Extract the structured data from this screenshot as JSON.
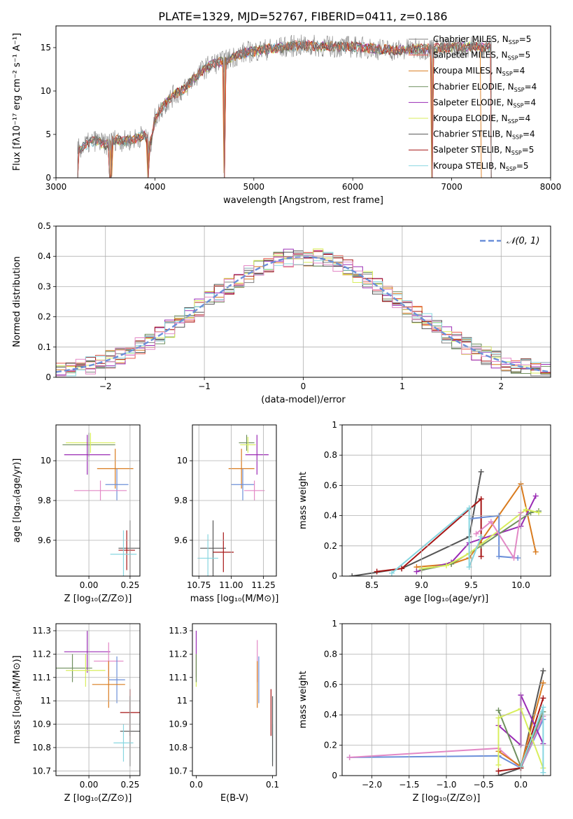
{
  "figure": {
    "title": "PLATE=1329, MJD=52767, FIBERID=0411, z=0.186"
  },
  "colors": {
    "chabrier_miles": "#808080",
    "salpeter_miles": "#e8584a",
    "kroupa_miles": "#d97b1e",
    "chabrier_elodie": "#6f8f5e",
    "salpeter_elodie": "#9a2bb5",
    "kroupa_elodie": "#d8ee5c",
    "chabrier_stelib": "#555555",
    "salpeter_stelib": "#a61515",
    "kroupa_stelib": "#87d6e0",
    "extra_blue": "#6b8fd9",
    "extra_pink": "#e388c6"
  },
  "chart_data": [
    {
      "type": "line",
      "id": "spectrum",
      "xlabel": "wavelength [Angstrom, rest frame]",
      "ylabel": "Flux [fλ10⁻¹⁷ erg cm⁻² s⁻¹ A⁻¹]",
      "xlim": [
        3000,
        8000
      ],
      "ylim": [
        0,
        17.5
      ],
      "xticks": [
        3000,
        4000,
        5000,
        6000,
        7000,
        8000
      ],
      "yticks": [
        0,
        5,
        10,
        15
      ],
      "grid": false,
      "legend_position": "top-right",
      "legend": [
        {
          "label": "Chabrier MILES, N",
          "sub": "SSP",
          "suffix": "=5",
          "color": "#808080"
        },
        {
          "label": "Salpeter MILES, N",
          "sub": "SSP",
          "suffix": "=5",
          "color": "#e8584a"
        },
        {
          "label": "Kroupa MILES, N",
          "sub": "SSP",
          "suffix": "=4",
          "color": "#d97b1e"
        },
        {
          "label": "Chabrier ELODIE, N",
          "sub": "SSP",
          "suffix": "=4",
          "color": "#6f8f5e"
        },
        {
          "label": "Salpeter ELODIE, N",
          "sub": "SSP",
          "suffix": "=4",
          "color": "#9a2bb5"
        },
        {
          "label": "Kroupa ELODIE, N",
          "sub": "SSP",
          "suffix": "=4",
          "color": "#d8ee5c"
        },
        {
          "label": "Chabrier STELIB, N",
          "sub": "SSP",
          "suffix": "=4",
          "color": "#555555"
        },
        {
          "label": "Salpeter STELIB, N",
          "sub": "SSP",
          "suffix": "=5",
          "color": "#a61515"
        },
        {
          "label": "Kroupa STELIB, N",
          "sub": "SSP",
          "suffix": "=5",
          "color": "#87d6e0"
        }
      ],
      "envelope": [
        [
          3220,
          3.2
        ],
        [
          3300,
          3.8
        ],
        [
          3400,
          4.3
        ],
        [
          3500,
          3.8
        ],
        [
          3600,
          4.4
        ],
        [
          3700,
          4.2
        ],
        [
          3800,
          4.5
        ],
        [
          3900,
          5.0
        ],
        [
          3950,
          3.5
        ],
        [
          4000,
          6.8
        ],
        [
          4100,
          8.5
        ],
        [
          4200,
          9.6
        ],
        [
          4300,
          10.2
        ],
        [
          4400,
          11.5
        ],
        [
          4500,
          12.6
        ],
        [
          4600,
          13.2
        ],
        [
          4700,
          13.4
        ],
        [
          4800,
          14.0
        ],
        [
          4900,
          14.4
        ],
        [
          5000,
          14.6
        ],
        [
          5200,
          14.9
        ],
        [
          5400,
          15.2
        ],
        [
          5600,
          15.2
        ],
        [
          5800,
          15.1
        ],
        [
          6000,
          15.1
        ],
        [
          6200,
          14.9
        ],
        [
          6400,
          14.7
        ],
        [
          6600,
          14.8
        ],
        [
          6800,
          14.9
        ],
        [
          7000,
          15.0
        ],
        [
          7200,
          15.1
        ],
        [
          7400,
          15.0
        ]
      ],
      "drops": [
        3220,
        3540,
        3560,
        3930,
        4700,
        6800,
        7400
      ]
    },
    {
      "type": "step",
      "id": "residuals",
      "xlabel": "(data-model)/error",
      "ylabel": "Normed distribution",
      "xlim": [
        -2.5,
        2.5
      ],
      "ylim": [
        0,
        0.5
      ],
      "xticks": [
        -2,
        -1,
        0,
        1,
        2
      ],
      "yticks": [
        0,
        0.1,
        0.2,
        0.3,
        0.4,
        0.5
      ],
      "grid": true,
      "legend_position": "top-right",
      "legend_label": "𝒩(0, 1)",
      "bin_width": 0.1,
      "bin_start": -2.5,
      "gaussian": {
        "mean": 0,
        "sigma": 1,
        "color": "#6b8fd9"
      }
    },
    {
      "type": "scatter",
      "id": "age-vs-Z",
      "xlabel": "Z [log₁₀(Z/Z⊙)]",
      "ylabel": "age  [log₁₀(age/yr)]",
      "xlim": [
        -0.2,
        0.31
      ],
      "ylim": [
        9.42,
        10.18
      ],
      "xticks": [
        0.0,
        0.25
      ],
      "xticklabels": [
        "0.00",
        "0.25"
      ],
      "yticks": [
        9.6,
        9.8,
        10.0
      ],
      "grid": true,
      "errorbars": [
        {
          "x": 0.0,
          "xerr": 0.16,
          "y": 10.08,
          "yerr": 0.06,
          "color": "#6f8f5e"
        },
        {
          "x": 0.01,
          "xerr": 0.15,
          "y": 10.09,
          "yerr": 0.05,
          "color": "#d8ee5c"
        },
        {
          "x": -0.01,
          "xerr": 0.14,
          "y": 10.03,
          "yerr": 0.1,
          "color": "#9a2bb5"
        },
        {
          "x": 0.16,
          "xerr": 0.11,
          "y": 9.96,
          "yerr": 0.1,
          "color": "#d97b1e"
        },
        {
          "x": 0.17,
          "xerr": 0.07,
          "y": 9.88,
          "yerr": 0.08,
          "color": "#6b8fd9"
        },
        {
          "x": 0.07,
          "xerr": 0.16,
          "y": 9.85,
          "yerr": 0.05,
          "color": "#e388c6"
        },
        {
          "x": 0.25,
          "xerr": 0.07,
          "y": 9.56,
          "yerr": 0.14,
          "color": "#555555"
        },
        {
          "x": 0.23,
          "xerr": 0.05,
          "y": 9.55,
          "yerr": 0.1,
          "color": "#a61515"
        },
        {
          "x": 0.21,
          "xerr": 0.08,
          "y": 9.53,
          "yerr": 0.12,
          "color": "#87d6e0"
        }
      ]
    },
    {
      "type": "scatter",
      "id": "age-vs-mass",
      "xlabel": "mass [log₁₀(M/M⊙)]",
      "ylabel": "",
      "xlim": [
        10.7,
        11.35
      ],
      "ylim": [
        9.42,
        10.18
      ],
      "xticks": [
        10.75,
        11.0,
        11.25
      ],
      "xticklabels": [
        "10.75",
        "11.00",
        "11.25"
      ],
      "yticks": [
        9.6,
        9.8,
        10.0
      ],
      "grid": true,
      "errorbars": [
        {
          "x": 11.12,
          "xerr": 0.06,
          "y": 10.09,
          "yerr": 0.04,
          "color": "#6f8f5e"
        },
        {
          "x": 11.13,
          "xerr": 0.06,
          "y": 10.08,
          "yerr": 0.04,
          "color": "#d8ee5c"
        },
        {
          "x": 11.2,
          "xerr": 0.09,
          "y": 10.03,
          "yerr": 0.1,
          "color": "#9a2bb5"
        },
        {
          "x": 11.08,
          "xerr": 0.1,
          "y": 9.96,
          "yerr": 0.1,
          "color": "#d97b1e"
        },
        {
          "x": 11.09,
          "xerr": 0.09,
          "y": 9.88,
          "yerr": 0.08,
          "color": "#6b8fd9"
        },
        {
          "x": 11.18,
          "xerr": 0.08,
          "y": 9.85,
          "yerr": 0.05,
          "color": "#e388c6"
        },
        {
          "x": 10.86,
          "xerr": 0.1,
          "y": 9.56,
          "yerr": 0.14,
          "color": "#555555"
        },
        {
          "x": 10.94,
          "xerr": 0.08,
          "y": 9.54,
          "yerr": 0.1,
          "color": "#a61515"
        },
        {
          "x": 10.82,
          "xerr": 0.08,
          "y": 9.51,
          "yerr": 0.12,
          "color": "#87d6e0"
        }
      ]
    },
    {
      "type": "line",
      "id": "massweight-vs-age",
      "xlabel": "age  [log₁₀(age/yr)]",
      "ylabel": "mass weight",
      "xlim": [
        8.2,
        10.3
      ],
      "ylim": [
        0,
        1
      ],
      "xticks": [
        8.5,
        9.0,
        9.5,
        10.0
      ],
      "xticklabels": [
        "8.5",
        "9.0",
        "9.5",
        "10.0"
      ],
      "yticks": [
        0,
        0.2,
        0.4,
        0.6,
        0.8,
        1.0
      ],
      "grid": true,
      "series": [
        {
          "color": "#555555",
          "x": [
            8.3,
            8.8,
            9.48,
            9.6
          ],
          "y": [
            0.0,
            0.05,
            0.26,
            0.69
          ]
        },
        {
          "color": "#a61515",
          "x": [
            8.55,
            8.8,
            9.6,
            9.6
          ],
          "y": [
            0.03,
            0.05,
            0.51,
            0.13
          ]
        },
        {
          "color": "#d97b1e",
          "x": [
            8.95,
            9.3,
            9.48,
            10.0,
            10.15
          ],
          "y": [
            0.06,
            0.08,
            0.12,
            0.61,
            0.16
          ]
        },
        {
          "color": "#9a2bb5",
          "x": [
            8.95,
            9.3,
            9.48,
            10.0,
            10.15
          ],
          "y": [
            0.03,
            0.09,
            0.22,
            0.33,
            0.53
          ]
        },
        {
          "color": "#6f8f5e",
          "x": [
            9.0,
            9.3,
            9.6,
            10.1,
            10.18
          ],
          "y": [
            0.04,
            0.08,
            0.2,
            0.42,
            0.43
          ]
        },
        {
          "color": "#d8ee5c",
          "x": [
            9.0,
            9.25,
            9.48,
            10.05,
            10.18
          ],
          "y": [
            0.05,
            0.07,
            0.15,
            0.44,
            0.42
          ]
        },
        {
          "color": "#6b8fd9",
          "x": [
            9.5,
            9.78,
            9.78,
            9.97
          ],
          "y": [
            0.38,
            0.4,
            0.13,
            0.12
          ]
        },
        {
          "color": "#e388c6",
          "x": [
            9.55,
            9.7,
            9.93,
            10.0
          ],
          "y": [
            0.28,
            0.36,
            0.12,
            0.42
          ]
        },
        {
          "color": "#87d6e0",
          "x": [
            8.7,
            9.48,
            9.48,
            9.6
          ],
          "y": [
            0.02,
            0.45,
            0.06,
            0.26
          ]
        }
      ]
    },
    {
      "type": "scatter",
      "id": "mass-vs-Z",
      "xlabel": "Z [log₁₀(Z/Z⊙)]",
      "ylabel": "mass [log₁₀(M/M⊙)]",
      "xlim": [
        -0.2,
        0.31
      ],
      "ylim": [
        10.68,
        11.33
      ],
      "xticks": [
        0.0,
        0.25
      ],
      "xticklabels": [
        "0.00",
        "0.25"
      ],
      "yticks": [
        10.7,
        10.8,
        10.9,
        11.0,
        11.1,
        11.2,
        11.3
      ],
      "grid": true,
      "errorbars": [
        {
          "x": -0.01,
          "xerr": 0.14,
          "y": 11.21,
          "yerr": 0.09,
          "color": "#9a2bb5"
        },
        {
          "x": 0.12,
          "xerr": 0.09,
          "y": 11.17,
          "yerr": 0.08,
          "color": "#e388c6"
        },
        {
          "x": -0.1,
          "xerr": 0.12,
          "y": 11.14,
          "yerr": 0.06,
          "color": "#6f8f5e"
        },
        {
          "x": -0.02,
          "xerr": 0.12,
          "y": 11.13,
          "yerr": 0.07,
          "color": "#d8ee5c"
        },
        {
          "x": 0.17,
          "xerr": 0.05,
          "y": 11.09,
          "yerr": 0.1,
          "color": "#6b8fd9"
        },
        {
          "x": 0.12,
          "xerr": 0.1,
          "y": 11.07,
          "yerr": 0.1,
          "color": "#d97b1e"
        },
        {
          "x": 0.25,
          "xerr": 0.06,
          "y": 10.95,
          "yerr": 0.1,
          "color": "#a61515"
        },
        {
          "x": 0.25,
          "xerr": 0.06,
          "y": 10.87,
          "yerr": 0.15,
          "color": "#555555"
        },
        {
          "x": 0.21,
          "xerr": 0.06,
          "y": 10.82,
          "yerr": 0.08,
          "color": "#87d6e0"
        }
      ]
    },
    {
      "type": "scatter",
      "id": "mass-vs-ebv",
      "xlabel": "E(B-V)",
      "ylabel": "",
      "xlim": [
        -0.005,
        0.105
      ],
      "ylim": [
        10.68,
        11.33
      ],
      "xticks": [
        0.0,
        0.1
      ],
      "xticklabels": [
        "0.0",
        "0.1"
      ],
      "yticks": [
        10.7,
        10.8,
        10.9,
        11.0,
        11.1,
        11.2,
        11.3
      ],
      "grid": false,
      "errorbars": [
        {
          "x": 0.0,
          "xerr": 0.0,
          "y": 11.2,
          "yerr": 0.1,
          "color": "#9a2bb5"
        },
        {
          "x": 0.0,
          "xerr": 0.0,
          "y": 11.13,
          "yerr": 0.07,
          "color": "#d8ee5c"
        },
        {
          "x": 0.0,
          "xerr": 0.0,
          "y": 11.14,
          "yerr": 0.06,
          "color": "#6f8f5e"
        },
        {
          "x": 0.08,
          "xerr": 0.0,
          "y": 11.17,
          "yerr": 0.09,
          "color": "#e388c6"
        },
        {
          "x": 0.08,
          "xerr": 0.0,
          "y": 11.07,
          "yerr": 0.1,
          "color": "#d97b1e"
        },
        {
          "x": 0.082,
          "xerr": 0.0,
          "y": 11.09,
          "yerr": 0.1,
          "color": "#6b8fd9"
        },
        {
          "x": 0.098,
          "xerr": 0.0,
          "y": 10.95,
          "yerr": 0.1,
          "color": "#a61515"
        },
        {
          "x": 0.1,
          "xerr": 0.0,
          "y": 10.82,
          "yerr": 0.08,
          "color": "#87d6e0"
        },
        {
          "x": 0.1,
          "xerr": 0.0,
          "y": 10.87,
          "yerr": 0.15,
          "color": "#555555"
        }
      ]
    },
    {
      "type": "line",
      "id": "massweight-vs-Z",
      "xlabel": "Z [log₁₀(Z/Z⊙)]",
      "ylabel": "mass weight",
      "xlim": [
        -2.4,
        0.4
      ],
      "ylim": [
        0,
        1
      ],
      "xticks": [
        -2.0,
        -1.5,
        -1.0,
        -0.5,
        0.0
      ],
      "xticklabels": [
        "−2.0",
        "−1.5",
        "−1.0",
        "−0.5",
        "0.0"
      ],
      "yticks": [
        0,
        0.2,
        0.4,
        0.6,
        0.8,
        1.0
      ],
      "grid": true,
      "series": [
        {
          "color": "#6b8fd9",
          "x": [
            -2.3,
            -0.3,
            0.0,
            0.3
          ],
          "y": [
            0.12,
            0.13,
            0.05,
            0.37
          ]
        },
        {
          "color": "#e388c6",
          "x": [
            -2.3,
            -0.3,
            0.0,
            0.3
          ],
          "y": [
            0.12,
            0.18,
            0.05,
            0.39
          ]
        },
        {
          "color": "#555555",
          "x": [
            -0.3,
            0.0,
            0.3
          ],
          "y": [
            0.0,
            0.05,
            0.69
          ]
        },
        {
          "color": "#a61515",
          "x": [
            -0.3,
            0.0,
            0.3
          ],
          "y": [
            0.03,
            0.05,
            0.51
          ]
        },
        {
          "color": "#d97b1e",
          "x": [
            -0.3,
            0.0,
            0.3
          ],
          "y": [
            0.16,
            0.06,
            0.61
          ]
        },
        {
          "color": "#9a2bb5",
          "x": [
            -0.3,
            0.0,
            0.0,
            0.3
          ],
          "y": [
            0.33,
            0.2,
            0.53,
            0.21
          ]
        },
        {
          "color": "#6f8f5e",
          "x": [
            -0.3,
            0.0,
            0.3
          ],
          "y": [
            0.43,
            0.06,
            0.42
          ]
        },
        {
          "color": "#d8ee5c",
          "x": [
            -0.3,
            -0.3,
            0.0,
            0.3
          ],
          "y": [
            0.07,
            0.38,
            0.44,
            0.05
          ]
        },
        {
          "color": "#87d6e0",
          "x": [
            0.0,
            0.3,
            0.3
          ],
          "y": [
            0.06,
            0.45,
            0.02
          ]
        }
      ]
    }
  ]
}
